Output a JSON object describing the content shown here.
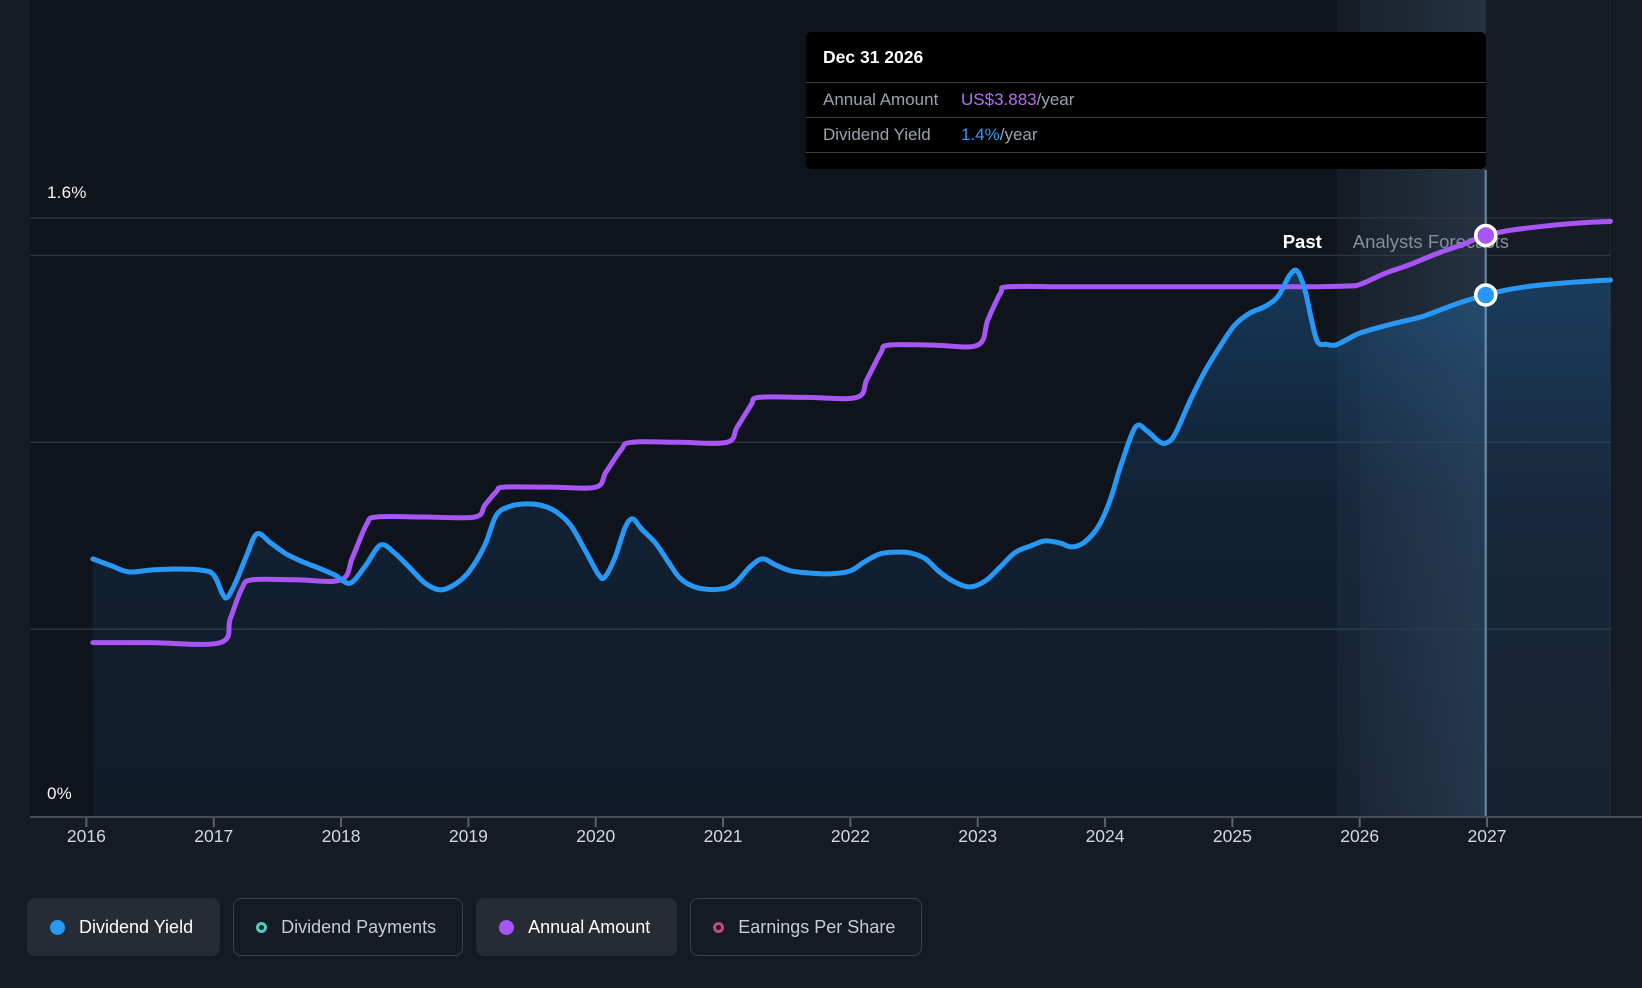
{
  "tooltip": {
    "title": "Dec 31 2026",
    "rows": [
      {
        "label": "Annual Amount",
        "value": "US$3.883",
        "suffix": "/year",
        "value_color": "#b76df8"
      },
      {
        "label": "Dividend Yield",
        "value": "1.4%",
        "suffix": "/year",
        "value_color": "#2b9df4"
      }
    ]
  },
  "region_labels": {
    "past": "Past",
    "forecast": "Analysts Forecasts"
  },
  "y_axis_labels": {
    "top": "1.6%",
    "bottom": "0%"
  },
  "legend": [
    {
      "label": "Dividend Yield",
      "color": "#2798f5",
      "style": "filled",
      "active": true
    },
    {
      "label": "Dividend Payments",
      "color": "#45cfc0",
      "style": "ring",
      "active": false
    },
    {
      "label": "Annual Amount",
      "color": "#a855f5",
      "style": "filled",
      "active": true
    },
    {
      "label": "Earnings Per Share",
      "color": "#c44983",
      "style": "ring",
      "active": false
    }
  ],
  "chart_data": {
    "type": "line",
    "x_ticks": [
      2016,
      2017,
      2018,
      2019,
      2020,
      2021,
      2022,
      2023,
      2024,
      2025,
      2026,
      2027
    ],
    "x_range": [
      2016.05,
      2027.97
    ],
    "yield_axis": {
      "unit": "%",
      "min": 0,
      "max": 1.6,
      "gridlines": [
        0.5,
        1.0,
        1.5,
        1.6
      ],
      "labeled": {
        "0": "0%",
        "1.6": "1.6%"
      }
    },
    "amount_axis": {
      "unit": "US$",
      "min": 0,
      "max": 4.0
    },
    "past_until": 2025.82,
    "highlight_band": [
      2026.0,
      2026.99
    ],
    "hover_x": 2026.99,
    "series": [
      {
        "name": "Dividend Yield",
        "axis": "yield",
        "unit": "%",
        "color": "#2798f5",
        "area": true,
        "points": [
          [
            2016.05,
            0.688
          ],
          [
            2016.2,
            0.669
          ],
          [
            2016.33,
            0.653
          ],
          [
            2016.5,
            0.658
          ],
          [
            2016.7,
            0.661
          ],
          [
            2016.9,
            0.658
          ],
          [
            2017.0,
            0.645
          ],
          [
            2017.07,
            0.594
          ],
          [
            2017.11,
            0.586
          ],
          [
            2017.18,
            0.631
          ],
          [
            2017.26,
            0.698
          ],
          [
            2017.34,
            0.755
          ],
          [
            2017.45,
            0.73
          ],
          [
            2017.57,
            0.701
          ],
          [
            2017.7,
            0.68
          ],
          [
            2017.82,
            0.664
          ],
          [
            2017.95,
            0.645
          ],
          [
            2018.07,
            0.623
          ],
          [
            2018.19,
            0.669
          ],
          [
            2018.31,
            0.725
          ],
          [
            2018.42,
            0.704
          ],
          [
            2018.54,
            0.664
          ],
          [
            2018.66,
            0.623
          ],
          [
            2018.78,
            0.605
          ],
          [
            2018.9,
            0.621
          ],
          [
            2019.01,
            0.656
          ],
          [
            2019.13,
            0.725
          ],
          [
            2019.22,
            0.805
          ],
          [
            2019.33,
            0.829
          ],
          [
            2019.45,
            0.835
          ],
          [
            2019.56,
            0.832
          ],
          [
            2019.68,
            0.816
          ],
          [
            2019.8,
            0.779
          ],
          [
            2019.92,
            0.709
          ],
          [
            2020.02,
            0.647
          ],
          [
            2020.07,
            0.639
          ],
          [
            2020.15,
            0.69
          ],
          [
            2020.23,
            0.771
          ],
          [
            2020.29,
            0.795
          ],
          [
            2020.36,
            0.768
          ],
          [
            2020.47,
            0.73
          ],
          [
            2020.57,
            0.68
          ],
          [
            2020.66,
            0.637
          ],
          [
            2020.76,
            0.615
          ],
          [
            2020.86,
            0.607
          ],
          [
            2020.98,
            0.607
          ],
          [
            2021.09,
            0.621
          ],
          [
            2021.21,
            0.666
          ],
          [
            2021.31,
            0.688
          ],
          [
            2021.41,
            0.672
          ],
          [
            2021.53,
            0.656
          ],
          [
            2021.69,
            0.65
          ],
          [
            2021.85,
            0.648
          ],
          [
            2022.0,
            0.656
          ],
          [
            2022.11,
            0.68
          ],
          [
            2022.23,
            0.701
          ],
          [
            2022.35,
            0.706
          ],
          [
            2022.47,
            0.704
          ],
          [
            2022.59,
            0.688
          ],
          [
            2022.7,
            0.653
          ],
          [
            2022.82,
            0.626
          ],
          [
            2022.94,
            0.613
          ],
          [
            2023.06,
            0.629
          ],
          [
            2023.17,
            0.664
          ],
          [
            2023.29,
            0.704
          ],
          [
            2023.41,
            0.722
          ],
          [
            2023.53,
            0.736
          ],
          [
            2023.65,
            0.73
          ],
          [
            2023.74,
            0.72
          ],
          [
            2023.84,
            0.733
          ],
          [
            2023.95,
            0.776
          ],
          [
            2024.04,
            0.845
          ],
          [
            2024.13,
            0.944
          ],
          [
            2024.24,
            1.041
          ],
          [
            2024.33,
            1.03
          ],
          [
            2024.42,
            1.003
          ],
          [
            2024.48,
            0.998
          ],
          [
            2024.55,
            1.022
          ],
          [
            2024.67,
            1.113
          ],
          [
            2024.79,
            1.193
          ],
          [
            2024.91,
            1.26
          ],
          [
            2025.02,
            1.314
          ],
          [
            2025.14,
            1.346
          ],
          [
            2025.26,
            1.364
          ],
          [
            2025.36,
            1.391
          ],
          [
            2025.45,
            1.447
          ],
          [
            2025.51,
            1.458
          ],
          [
            2025.57,
            1.407
          ],
          [
            2025.62,
            1.33
          ],
          [
            2025.67,
            1.268
          ],
          [
            2025.74,
            1.262
          ],
          [
            2025.81,
            1.26
          ],
          [
            2025.9,
            1.275
          ],
          [
            2026.0,
            1.292
          ],
          [
            2026.16,
            1.308
          ],
          [
            2026.32,
            1.322
          ],
          [
            2026.48,
            1.335
          ],
          [
            2026.64,
            1.355
          ],
          [
            2026.8,
            1.375
          ],
          [
            2026.99,
            1.394
          ],
          [
            2027.15,
            1.407
          ],
          [
            2027.35,
            1.418
          ],
          [
            2027.6,
            1.426
          ],
          [
            2027.8,
            1.431
          ],
          [
            2027.97,
            1.434
          ]
        ]
      },
      {
        "name": "Annual Amount",
        "axis": "amount",
        "unit": "US$",
        "color": "#a855f5",
        "area": false,
        "points": [
          [
            2016.05,
            1.16
          ],
          [
            2016.5,
            1.16
          ],
          [
            2017.05,
            1.16
          ],
          [
            2017.13,
            1.32
          ],
          [
            2017.22,
            1.52
          ],
          [
            2017.3,
            1.58
          ],
          [
            2017.65,
            1.58
          ],
          [
            2018.0,
            1.58
          ],
          [
            2018.09,
            1.73
          ],
          [
            2018.2,
            1.95
          ],
          [
            2018.28,
            2.0
          ],
          [
            2018.65,
            2.0
          ],
          [
            2019.05,
            2.0
          ],
          [
            2019.13,
            2.08
          ],
          [
            2019.22,
            2.17
          ],
          [
            2019.28,
            2.2
          ],
          [
            2019.65,
            2.2
          ],
          [
            2020.0,
            2.2
          ],
          [
            2020.08,
            2.3
          ],
          [
            2020.2,
            2.45
          ],
          [
            2020.28,
            2.5
          ],
          [
            2020.65,
            2.5
          ],
          [
            2021.03,
            2.5
          ],
          [
            2021.11,
            2.6
          ],
          [
            2021.22,
            2.75
          ],
          [
            2021.28,
            2.8
          ],
          [
            2021.65,
            2.8
          ],
          [
            2022.05,
            2.8
          ],
          [
            2022.13,
            2.92
          ],
          [
            2022.24,
            3.1
          ],
          [
            2022.3,
            3.15
          ],
          [
            2022.65,
            3.15
          ],
          [
            2023.0,
            3.15
          ],
          [
            2023.08,
            3.32
          ],
          [
            2023.18,
            3.5
          ],
          [
            2023.24,
            3.54
          ],
          [
            2023.7,
            3.54
          ],
          [
            2024.2,
            3.54
          ],
          [
            2024.7,
            3.54
          ],
          [
            2025.2,
            3.54
          ],
          [
            2025.6,
            3.54
          ],
          [
            2025.9,
            3.545
          ],
          [
            2026.0,
            3.555
          ],
          [
            2026.2,
            3.63
          ],
          [
            2026.4,
            3.69
          ],
          [
            2026.6,
            3.76
          ],
          [
            2026.8,
            3.82
          ],
          [
            2026.99,
            3.883
          ],
          [
            2027.2,
            3.92
          ],
          [
            2027.5,
            3.95
          ],
          [
            2027.75,
            3.968
          ],
          [
            2027.97,
            3.977
          ]
        ]
      }
    ],
    "markers": [
      {
        "series": "Annual Amount",
        "x": 2026.99,
        "value": 3.883
      },
      {
        "series": "Dividend Yield",
        "x": 2026.99,
        "value": 1.394
      }
    ]
  }
}
